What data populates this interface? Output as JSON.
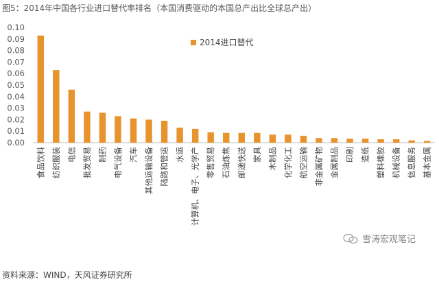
{
  "figure": {
    "title": "图5：2014年中国各行业进口替代率排名（本国消费驱动的本国总产出比全球总产出）",
    "source": "资料来源：WIND，天风证券研究所",
    "watermark": "雪涛宏观笔记",
    "watermark_icon": "wechat-icon"
  },
  "chart_data": {
    "type": "bar",
    "title": "",
    "xlabel": "",
    "ylabel": "",
    "ylim": [
      0,
      0.1
    ],
    "yticks": [
      "0.00",
      "0.01",
      "0.02",
      "0.03",
      "0.04",
      "0.05",
      "0.06",
      "0.07",
      "0.08",
      "0.09",
      "0.10"
    ],
    "grid": false,
    "legend_position": "top-right",
    "bar_color": "#e8942e",
    "categories": [
      "食品饮料",
      "纺织服装",
      "电信",
      "批发贸易",
      "制药",
      "电气设备",
      "汽车",
      "其他运输设备",
      "陆路和管运",
      "水运",
      "计算机、电子、光学产",
      "零售贸易",
      "石油炼焦",
      "邮递快送",
      "家具",
      "木制品",
      "化学化工",
      "航空运输",
      "非金属矿物",
      "金属制品",
      "印刷",
      "造纸",
      "塑料橡胶",
      "机械设备",
      "信息服务",
      "基本金属"
    ],
    "series": [
      {
        "name": "2014进口替代",
        "values": [
          0.093,
          0.063,
          0.046,
          0.027,
          0.026,
          0.023,
          0.021,
          0.02,
          0.019,
          0.013,
          0.012,
          0.009,
          0.0085,
          0.0085,
          0.0085,
          0.007,
          0.007,
          0.006,
          0.004,
          0.004,
          0.0035,
          0.0035,
          0.003,
          0.003,
          0.002,
          0.0015
        ]
      }
    ]
  }
}
